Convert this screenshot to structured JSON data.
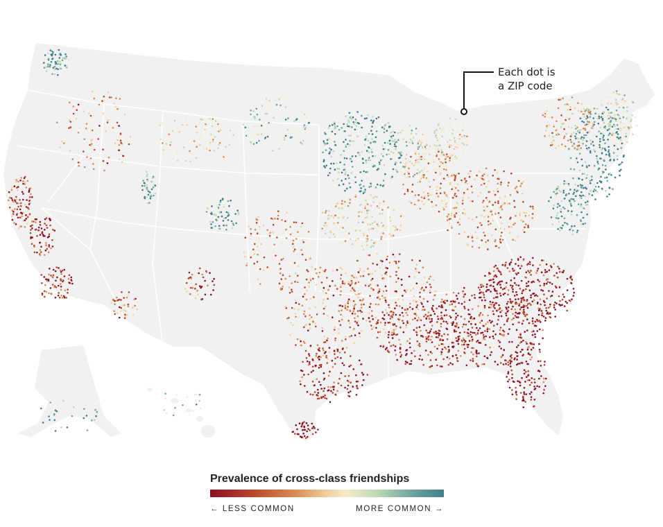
{
  "annotation": {
    "line1": "Each dot is",
    "line2": "a ZIP code"
  },
  "legend": {
    "title": "Prevalence of cross-class friendships",
    "less": "← LESS COMMON",
    "more": "MORE COMMON →",
    "colors": [
      "#8b1027",
      "#b9452a",
      "#d98a52",
      "#f0cf9e",
      "#f3ecc8",
      "#bcd7b3",
      "#6fa6a0",
      "#3d7f88"
    ]
  },
  "map": {
    "land_color": "#f1f1f1",
    "border_color": "#ffffff",
    "regions": [
      "contiguous-us",
      "alaska",
      "hawaii"
    ]
  }
}
